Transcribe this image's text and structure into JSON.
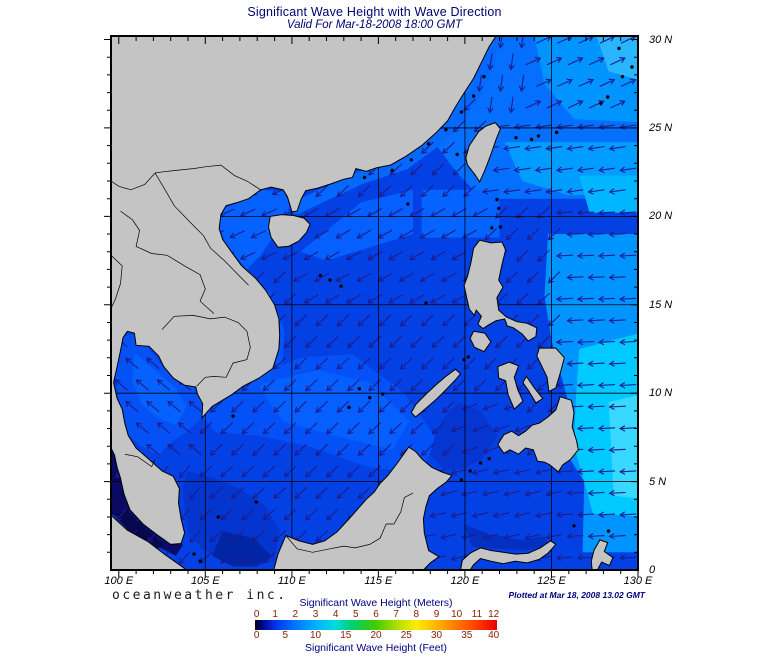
{
  "header": {
    "title": "Significant Wave Height with Wave Direction",
    "subtitle": "Valid For Mar-18-2008 18:00 GMT"
  },
  "credits": {
    "brand": "oceanweather inc.",
    "plotted": "Plotted at Mar 18, 2008 13.02 GMT"
  },
  "map": {
    "extent": {
      "lon_min": 99.55,
      "lon_max": 130.0,
      "lat_min": 0,
      "lat_max": 30.2
    },
    "grid_lon": [
      105,
      110,
      115,
      120,
      125
    ],
    "grid_lat": [
      5,
      10,
      15,
      20,
      25
    ],
    "lon_labels": [
      {
        "value": 100,
        "label": "100 E"
      },
      {
        "value": 105,
        "label": "105 E"
      },
      {
        "value": 110,
        "label": "110 E"
      },
      {
        "value": 115,
        "label": "115 E"
      },
      {
        "value": 120,
        "label": "120 E"
      },
      {
        "value": 125,
        "label": "125 E"
      },
      {
        "value": 130,
        "label": "130 E"
      }
    ],
    "lat_labels": [
      {
        "value": 30,
        "label": "30 N"
      },
      {
        "value": 25,
        "label": "25 N"
      },
      {
        "value": 20,
        "label": "20 N"
      },
      {
        "value": 15,
        "label": "15 N"
      },
      {
        "value": 10,
        "label": "10 N"
      },
      {
        "value": 5,
        "label": "5 N"
      },
      {
        "value": 0,
        "label": "0"
      }
    ],
    "land_color": "#c4c4c4",
    "coast_color": "#000000",
    "sea_base_color": "#0441e4",
    "arrow_color": "#1c1c8f",
    "wave_zones": [
      {
        "lon": [
          99.5,
          104.9
        ],
        "lat": [
          5.6,
          13.6
        ],
        "dir": 140,
        "toward": "NW"
      },
      {
        "lon": [
          99.5,
          104.9
        ],
        "lat": [
          0,
          5.6
        ],
        "dir": 230,
        "toward": "SW"
      },
      {
        "lon": [
          104.9,
          110.6
        ],
        "lat": [
          16.8,
          21.8
        ],
        "dir": 205,
        "toward": "WSW"
      },
      {
        "lon": [
          123.5,
          130.5
        ],
        "lat": [
          25.8,
          30.3
        ],
        "dir": 25,
        "toward": "ENE"
      },
      {
        "lon": [
          120.7,
          123.5
        ],
        "lat": [
          25.8,
          30.3
        ],
        "dir": 262,
        "toward": "S"
      },
      {
        "lon": [
          121.0,
          130.5
        ],
        "lat": [
          21.3,
          25.8
        ],
        "dir": 188,
        "toward": "W"
      },
      {
        "lon": [
          125.7,
          130.5
        ],
        "lat": [
          0,
          21.3
        ],
        "dir": 183,
        "toward": "W"
      },
      {
        "lon": [
          119.6,
          123.6
        ],
        "lat": [
          5.7,
          9.6
        ],
        "dir": 200,
        "toward": "WSW"
      },
      {
        "lon": [
          117.0,
          125.7
        ],
        "lat": [
          0,
          5.7
        ],
        "dir": 193,
        "toward": "W"
      },
      {
        "lon": [
          99.5,
          110.5
        ],
        "lat": [
          0,
          5.6
        ],
        "dir": 222,
        "toward": "SW"
      },
      {
        "lon": [
          110.5,
          121.0
        ],
        "lat": [
          15,
          21.3
        ],
        "dir": 210,
        "toward": "SW"
      },
      {
        "lon": [
          99.5,
          130.5
        ],
        "lat": [
          0,
          30.3
        ],
        "dir": 224,
        "toward": "SW"
      }
    ]
  },
  "legend": {
    "title_meters": "Significant Wave Height (Meters)",
    "title_feet": "Significant Wave Height (Feet)",
    "meters_ticks": [
      0,
      1,
      2,
      3,
      4,
      5,
      6,
      7,
      8,
      9,
      10,
      11,
      12
    ],
    "feet_ticks": [
      0,
      5,
      10,
      15,
      20,
      25,
      30,
      35,
      40
    ],
    "tick_color": "#8b2000",
    "title_color": "#000080",
    "gradient": [
      {
        "at": 0,
        "color": "#000000"
      },
      {
        "at": 2.5,
        "color": "#000080"
      },
      {
        "at": 8.3,
        "color": "#0033f0"
      },
      {
        "at": 16.7,
        "color": "#0077ff"
      },
      {
        "at": 25,
        "color": "#00b0ff"
      },
      {
        "at": 33.3,
        "color": "#00dce0"
      },
      {
        "at": 40,
        "color": "#00d070"
      },
      {
        "at": 47,
        "color": "#2ecc20"
      },
      {
        "at": 50,
        "color": "#44cc00"
      },
      {
        "at": 58.3,
        "color": "#a8e000"
      },
      {
        "at": 66.7,
        "color": "#ffee00"
      },
      {
        "at": 75,
        "color": "#ffb400"
      },
      {
        "at": 83.3,
        "color": "#ff7800"
      },
      {
        "at": 91.7,
        "color": "#ff3c00"
      },
      {
        "at": 100,
        "color": "#e60000"
      }
    ]
  },
  "chart_data": {
    "type": "heatmap",
    "title": "Significant Wave Height with Wave Direction",
    "valid_time": "Mar-18-2008 18:00 GMT",
    "plotted_time": "Mar 18, 2008 13.02 GMT",
    "region": "South China Sea / Western Pacific (100 E - 130 E, 0 - 30 N)",
    "units": [
      "Meters",
      "Feet"
    ],
    "scale_meters": [
      0,
      1,
      2,
      3,
      4,
      5,
      6,
      7,
      8,
      9,
      10,
      11,
      12
    ],
    "scale_feet": [
      0,
      5,
      10,
      15,
      20,
      25,
      30,
      35,
      40
    ],
    "xlabel_ticks": [
      "100 E",
      "105 E",
      "110 E",
      "115 E",
      "120 E",
      "125 E",
      "130 E"
    ],
    "ylabel_ticks": [
      "0",
      "5 N",
      "10 N",
      "15 N",
      "20 N",
      "25 N",
      "30 N"
    ],
    "observed_values_meters": "Mostly 0.5-2.5 m across the South China Sea (blue); ~3 m cyan patches east of the Philippines and in the far northeast; near 0 m (dark navy/black) in the Malacca Strait and Andaman edge; wave direction arrows point generally SW-W, NW in the Gulf of Thailand, NE in the far northeast corner"
  }
}
